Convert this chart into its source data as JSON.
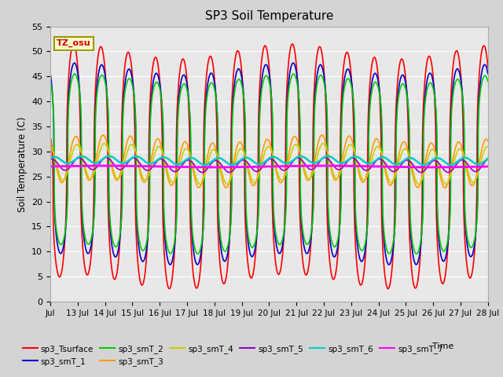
{
  "title": "SP3 Soil Temperature",
  "xlabel": "Time",
  "ylabel": "Soil Temperature (C)",
  "ylim": [
    0,
    55
  ],
  "yticks": [
    0,
    5,
    10,
    15,
    20,
    25,
    30,
    35,
    40,
    45,
    50,
    55
  ],
  "annotation": "TZ_osu",
  "bg_color": "#d4d4d4",
  "plot_bg": "#e8e8e8",
  "series_order": [
    "sp3_Tsurface",
    "sp3_smT_1",
    "sp3_smT_2",
    "sp3_smT_3",
    "sp3_smT_4",
    "sp3_smT_5",
    "sp3_smT_6",
    "sp3_smT_7"
  ],
  "series_colors": [
    "#ff0000",
    "#0000cc",
    "#00cc00",
    "#ff9900",
    "#cccc00",
    "#9900cc",
    "#00cccc",
    "#ff00ff"
  ],
  "series_lw": [
    1.2,
    1.2,
    1.2,
    1.2,
    1.2,
    1.2,
    1.8,
    2.0
  ],
  "x_tick_labels": [
    "Jul",
    "13 Jul",
    "14 Jul",
    "15 Jul",
    "16 Jul",
    "17 Jul",
    "18 Jul",
    "19 Jul",
    "20 Jul",
    "21 Jul",
    "22 Jul",
    "23 Jul",
    "24 Jul",
    "25 Jul",
    "26 Jul",
    "27 Jul",
    "28 Jul"
  ],
  "n_days": 16,
  "pts_per_day": 144
}
